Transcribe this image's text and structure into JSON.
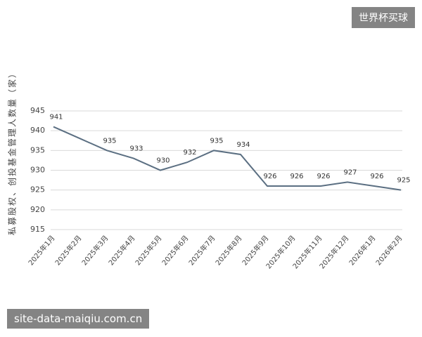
{
  "chart_data": {
    "type": "line",
    "y_label": "私募股权、创投基金管理人数量（家）",
    "categories": [
      "2025年1月",
      "2025年2月",
      "2025年3月",
      "2025年4月",
      "2025年5月",
      "2025年6月",
      "2025年7月",
      "2025年8月",
      "2025年9月",
      "2025年10月",
      "2025年11月",
      "2025年12月",
      "2026年1月",
      "2026年2月"
    ],
    "series": [
      {
        "name": "私募股权、创投基金管理人数量",
        "color": "#5b6f82",
        "values": [
          941,
          938,
          935,
          933,
          930,
          932,
          935,
          934,
          926,
          926,
          926,
          927,
          926,
          925
        ],
        "value_labels": [
          "941",
          null,
          "935",
          "933",
          "930",
          "932",
          "935",
          "934",
          "926",
          "926",
          "926",
          "927",
          "926",
          "925"
        ]
      }
    ],
    "ylim": [
      915,
      945
    ],
    "yticks": [
      915,
      920,
      925,
      930,
      935,
      940,
      945
    ],
    "grid": true
  },
  "watermark_top": "世界杯买球",
  "watermark_bottom": "site-data-maiqiu.com.cn"
}
